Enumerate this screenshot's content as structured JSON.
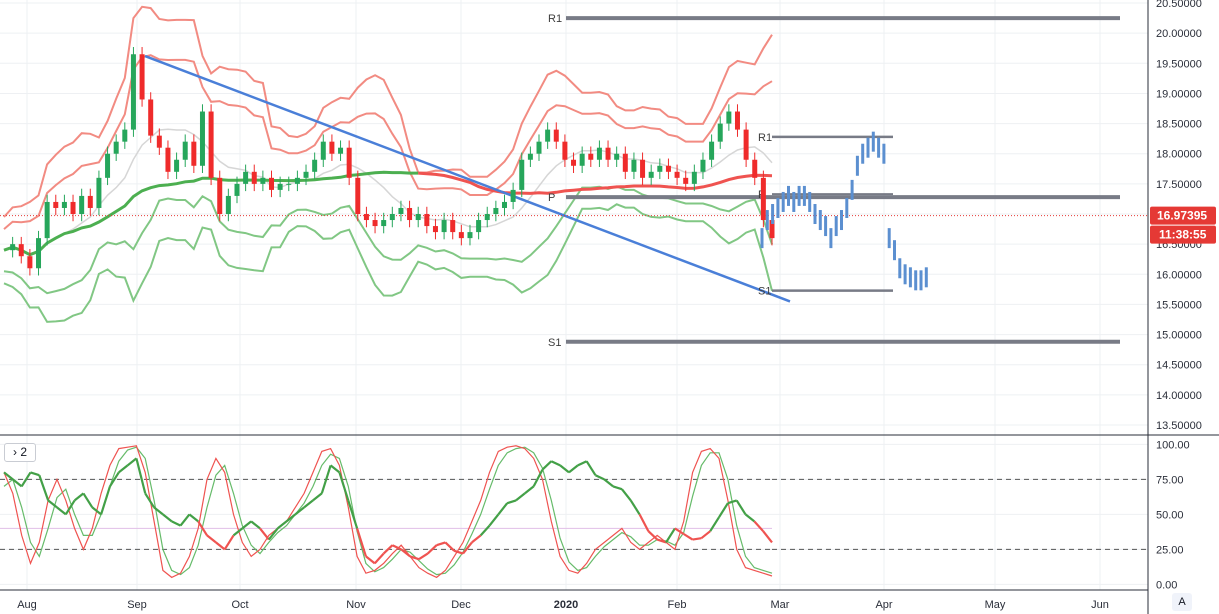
{
  "price_pane": {
    "last_price_tag": "16.97395",
    "countdown_tag": "11:38:55",
    "price_line_color": "#e53935",
    "level_labels": {
      "r1_major": "R1",
      "s1_major": "S1",
      "pivot": "P",
      "r1_minor": "R1",
      "s1_minor": "S1"
    },
    "projection_labels": [
      "R",
      "S"
    ]
  },
  "oscillator_pane": {
    "toggle_label": "› 2"
  },
  "auto_button_label": "A",
  "colors": {
    "bull_candle": "#26a65b",
    "bear_candle": "#ef2b2b",
    "outer_band_red": "#f28b82",
    "outer_band_green": "#81c784",
    "ma_green": "#4caf50",
    "ma_red": "#ef5350",
    "ma_grey": "#d6d6d6",
    "trendline": "#4a7fd8",
    "projection_bars": "#5b8fd0",
    "levels": "#787b86",
    "osc_fast": "#ef5350",
    "osc_slow": "#66bb6a",
    "osc_main": "#43a047",
    "osc_mid_line": "#e1bee7"
  },
  "chart_data": [
    {
      "type": "line",
      "pane": "price",
      "title": "",
      "x_ticks": [
        "Aug",
        "Sep",
        "Oct",
        "Nov",
        "Dec",
        "2020",
        "Feb",
        "Mar",
        "Apr",
        "May",
        "Jun"
      ],
      "y_ticks": [
        "13.50000",
        "14.00000",
        "14.50000",
        "15.00000",
        "15.50000",
        "16.00000",
        "16.50000",
        "17.00000",
        "17.50000",
        "18.00000",
        "18.50000",
        "19.00000",
        "19.50000",
        "20.00000",
        "20.50000"
      ],
      "ylim": [
        13.5,
        20.55
      ],
      "last_price": 16.97395,
      "levels": {
        "R1": 20.25,
        "S1": 14.88,
        "P": 17.28,
        "R1_short": 18.28,
        "S1_short": 15.73
      },
      "series": [
        {
          "values": [
            16.4,
            16.5,
            16.3,
            16.1,
            16.6,
            17.2,
            17.1,
            17.2,
            17.0,
            17.3,
            17.1,
            17.6,
            18.0,
            18.2,
            18.4,
            19.65,
            18.9,
            18.3,
            18.1,
            17.7,
            17.9,
            18.2,
            17.8,
            18.7,
            17.6,
            17.0,
            17.3,
            17.5,
            17.7,
            17.5,
            17.6,
            17.4,
            17.5,
            17.5,
            17.6,
            17.7,
            17.9,
            18.2,
            18.0,
            18.1,
            17.6,
            17.0,
            16.9,
            16.8,
            16.9,
            17.0,
            17.1,
            16.9,
            17.0,
            16.8,
            16.7,
            16.9,
            16.7,
            16.6,
            16.7,
            16.9,
            17.0,
            17.1,
            17.2,
            17.4,
            17.9,
            18.0,
            18.2,
            18.4,
            18.2,
            17.9,
            17.8,
            18.0,
            17.9,
            18.1,
            17.9,
            18.0,
            17.7,
            17.9,
            17.6,
            17.7,
            17.8,
            17.7,
            17.6,
            17.5,
            17.7,
            17.9,
            18.2,
            18.5,
            18.7,
            18.4,
            17.9,
            17.6,
            16.9,
            16.6
          ]
        }
      ],
      "projection_bars": [
        16.6,
        16.9,
        17.0,
        17.1,
        17.2,
        17.3,
        17.2,
        17.3,
        17.3,
        17.2,
        17.0,
        16.9,
        16.8,
        16.6,
        16.8,
        16.9,
        17.1,
        17.4,
        17.8,
        18.0,
        18.1,
        18.2,
        18.1,
        18.0,
        16.6,
        16.4,
        16.1,
        16.0,
        15.95,
        15.9,
        15.9,
        15.95
      ]
    },
    {
      "type": "line",
      "pane": "oscillator",
      "title": "",
      "x_ticks": [
        "Aug",
        "Sep",
        "Oct",
        "Nov",
        "Dec",
        "2020",
        "Feb",
        "Mar",
        "Apr",
        "May",
        "Jun"
      ],
      "y_ticks": [
        "0.00",
        "25.00",
        "50.00",
        "75.00",
        "100.00"
      ],
      "ylim": [
        -4,
        106
      ],
      "reference_lines": [
        25,
        40,
        75
      ],
      "series": [
        {
          "values": [
            80,
            65,
            35,
            15,
            30,
            60,
            75,
            60,
            40,
            25,
            40,
            65,
            85,
            97,
            98,
            99,
            80,
            45,
            10,
            5,
            8,
            20,
            40,
            75,
            90,
            80,
            50,
            30,
            20,
            25,
            35,
            40,
            45,
            55,
            65,
            80,
            95,
            97,
            85,
            55,
            20,
            8,
            10,
            15,
            22,
            28,
            20,
            12,
            8,
            5,
            10,
            20,
            30,
            45,
            60,
            80,
            95,
            98,
            99,
            97,
            90,
            75,
            45,
            20,
            10,
            8,
            15,
            25,
            30,
            35,
            40,
            30,
            25,
            30,
            35,
            30,
            25,
            45,
            80,
            95,
            97,
            90,
            60,
            25,
            12,
            10,
            8,
            6
          ]
        },
        {
          "values": [
            70,
            75,
            55,
            30,
            20,
            40,
            62,
            68,
            50,
            35,
            35,
            50,
            70,
            88,
            96,
            98,
            90,
            60,
            25,
            10,
            7,
            12,
            28,
            55,
            78,
            85,
            65,
            42,
            28,
            22,
            30,
            37,
            42,
            50,
            58,
            70,
            85,
            93,
            90,
            70,
            38,
            15,
            9,
            12,
            18,
            25,
            23,
            17,
            11,
            7,
            8,
            14,
            23,
            36,
            50,
            68,
            85,
            94,
            97,
            98,
            94,
            83,
            60,
            33,
            16,
            10,
            12,
            20,
            27,
            32,
            37,
            34,
            28,
            28,
            32,
            31,
            28,
            37,
            63,
            85,
            94,
            94,
            75,
            42,
            20,
            12,
            10,
            8
          ]
        },
        {
          "values": [
            80,
            75,
            70,
            80,
            78,
            60,
            55,
            50,
            60,
            65,
            55,
            50,
            70,
            80,
            85,
            90,
            65,
            55,
            50,
            45,
            42,
            50,
            45,
            35,
            30,
            25,
            35,
            40,
            45,
            40,
            32,
            40,
            45,
            50,
            55,
            60,
            65,
            85,
            80,
            60,
            40,
            20,
            15,
            22,
            28,
            25,
            20,
            18,
            22,
            28,
            30,
            24,
            22,
            30,
            35,
            42,
            50,
            58,
            60,
            65,
            70,
            82,
            88,
            85,
            80,
            85,
            88,
            78,
            75,
            70,
            68,
            60,
            50,
            38,
            32,
            30,
            40,
            36,
            32,
            33,
            38,
            48,
            58,
            60,
            50,
            45,
            38,
            30
          ]
        },
        {
          "values": [
            40,
            40,
            40,
            40,
            40,
            40,
            40,
            40,
            40,
            40,
            40,
            40,
            40,
            40,
            40,
            40,
            40,
            40,
            40,
            40,
            40,
            40,
            40,
            40,
            40,
            40,
            40,
            40,
            40,
            40,
            40,
            40,
            40,
            40,
            40,
            40,
            40,
            40,
            40,
            40,
            40,
            40,
            40,
            40,
            40,
            40,
            40,
            40,
            40,
            40,
            40,
            40,
            40,
            40,
            40,
            40,
            40,
            40,
            40,
            40,
            40,
            40,
            40,
            40,
            40,
            40,
            40,
            40,
            40,
            40,
            40,
            40,
            40,
            40,
            40,
            40,
            40,
            40,
            40,
            40,
            40,
            40,
            40,
            40,
            40,
            40,
            40,
            40
          ]
        }
      ]
    }
  ]
}
